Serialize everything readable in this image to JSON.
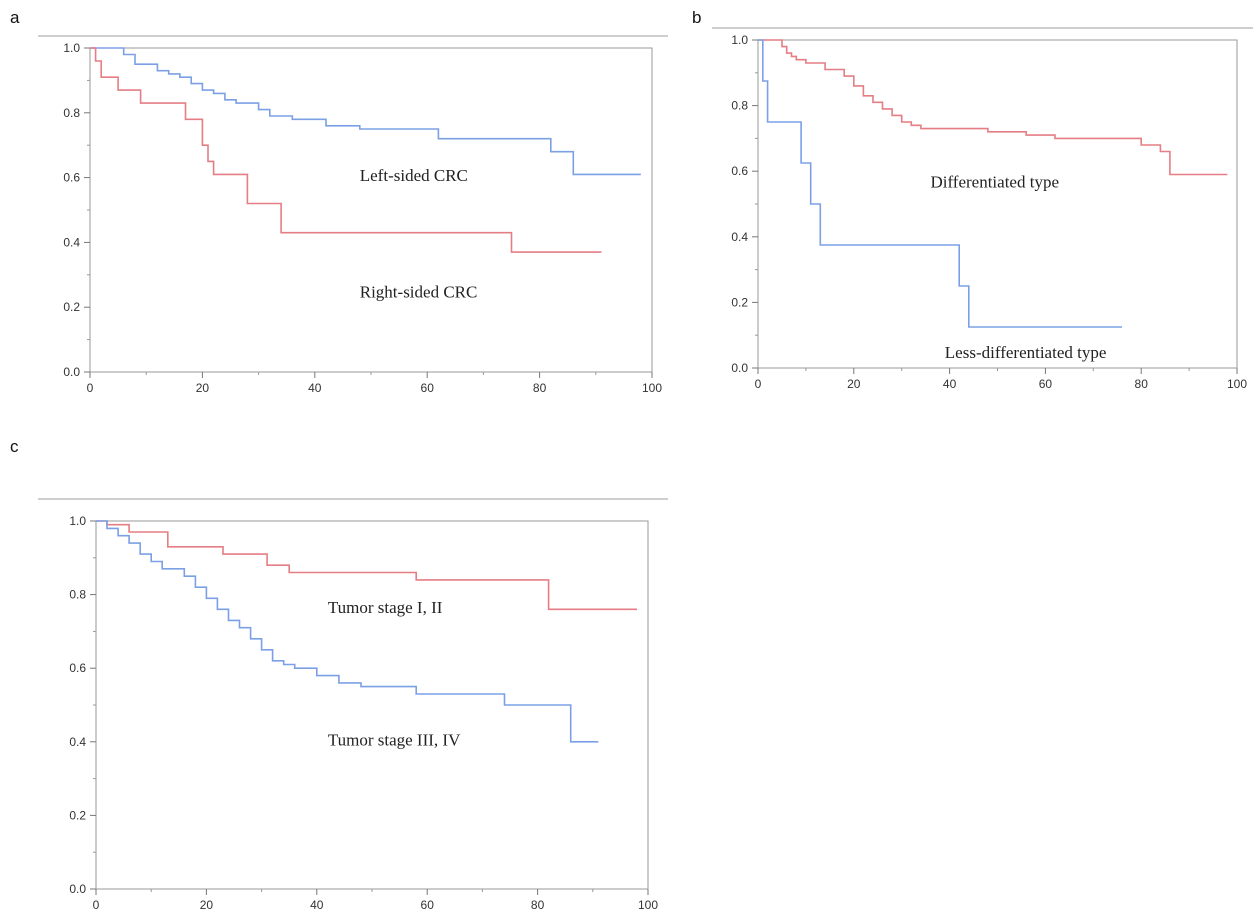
{
  "panels": [
    {
      "letter": "a",
      "chart_data": {
        "type": "line",
        "step": true,
        "xlim": [
          0,
          100
        ],
        "ylim": [
          0,
          1
        ],
        "xticks": [
          0,
          20,
          40,
          60,
          80,
          100
        ],
        "yticks": [
          0.0,
          0.2,
          0.4,
          0.6,
          0.8,
          1.0
        ],
        "xtick_labels": [
          "0",
          "20",
          "40",
          "60",
          "80",
          "100"
        ],
        "ytick_labels": [
          "0.0",
          "0.2",
          "0.4",
          "0.6",
          "0.8",
          "1.0"
        ],
        "grid": false,
        "annotations": [
          {
            "text": "Left-sided CRC",
            "x": 48,
            "y": 0.59
          },
          {
            "text": "Right-sided CRC",
            "x": 48,
            "y": 0.23
          }
        ],
        "series": [
          {
            "name": "Left-sided CRC",
            "color": "#7ba0e6",
            "x": [
              0,
              6,
              8,
              12,
              14,
              16,
              18,
              20,
              22,
              24,
              26,
              30,
              32,
              36,
              42,
              48,
              62,
              82,
              86,
              98
            ],
            "y": [
              1.0,
              0.98,
              0.95,
              0.93,
              0.92,
              0.91,
              0.89,
              0.87,
              0.86,
              0.84,
              0.83,
              0.81,
              0.79,
              0.78,
              0.76,
              0.75,
              0.72,
              0.68,
              0.61,
              0.61
            ]
          },
          {
            "name": "Right-sided CRC",
            "color": "#e57d84",
            "x": [
              0,
              1,
              2,
              5,
              9,
              17,
              20,
              21,
              22,
              28,
              34,
              75,
              91
            ],
            "y": [
              1.0,
              0.96,
              0.91,
              0.87,
              0.83,
              0.78,
              0.7,
              0.65,
              0.61,
              0.52,
              0.43,
              0.37,
              0.37
            ]
          }
        ]
      }
    },
    {
      "letter": "b",
      "chart_data": {
        "type": "line",
        "step": true,
        "xlim": [
          0,
          100
        ],
        "ylim": [
          0,
          1
        ],
        "xticks": [
          0,
          20,
          40,
          60,
          80,
          100
        ],
        "yticks": [
          0.0,
          0.2,
          0.4,
          0.6,
          0.8,
          1.0
        ],
        "xtick_labels": [
          "0",
          "20",
          "40",
          "60",
          "80",
          "100"
        ],
        "ytick_labels": [
          "0.0",
          "0.2",
          "0.4",
          "0.6",
          "0.8",
          "1.0"
        ],
        "grid": false,
        "annotations": [
          {
            "text": "Differentiated type",
            "x": 36,
            "y": 0.55
          },
          {
            "text": "Less-differentiated type",
            "x": 39,
            "y": 0.03
          }
        ],
        "series": [
          {
            "name": "Differentiated type",
            "color": "#e57d84",
            "x": [
              0,
              5,
              6,
              7,
              8,
              10,
              14,
              18,
              20,
              22,
              24,
              26,
              28,
              30,
              32,
              34,
              36,
              48,
              56,
              62,
              80,
              84,
              86,
              98
            ],
            "y": [
              1.0,
              0.98,
              0.96,
              0.95,
              0.94,
              0.93,
              0.91,
              0.89,
              0.86,
              0.83,
              0.81,
              0.79,
              0.77,
              0.75,
              0.74,
              0.73,
              0.73,
              0.72,
              0.71,
              0.7,
              0.68,
              0.66,
              0.59,
              0.59
            ]
          },
          {
            "name": "Less-differentiated type",
            "color": "#7ba0e6",
            "x": [
              0,
              1,
              2,
              9,
              11,
              13,
              42,
              44,
              76
            ],
            "y": [
              1.0,
              0.875,
              0.75,
              0.625,
              0.5,
              0.375,
              0.25,
              0.125,
              0.125
            ]
          }
        ]
      }
    },
    {
      "letter": "c",
      "chart_data": {
        "type": "line",
        "step": true,
        "xlim": [
          0,
          100
        ],
        "ylim": [
          0,
          1
        ],
        "xticks": [
          0,
          20,
          40,
          60,
          80,
          100
        ],
        "yticks": [
          0.0,
          0.2,
          0.4,
          0.6,
          0.8,
          1.0
        ],
        "xtick_labels": [
          "0",
          "20",
          "40",
          "60",
          "80",
          "100"
        ],
        "ytick_labels": [
          "0.0",
          "0.2",
          "0.4",
          "0.6",
          "0.8",
          "1.0"
        ],
        "grid": false,
        "annotations": [
          {
            "text": "Tumor stage I, II",
            "x": 42,
            "y": 0.75
          },
          {
            "text": "Tumor stage III, IV",
            "x": 42,
            "y": 0.39
          }
        ],
        "series": [
          {
            "name": "Tumor stage I, II",
            "color": "#e57d84",
            "x": [
              0,
              2,
              6,
              13,
              23,
              31,
              35,
              58,
              82,
              98
            ],
            "y": [
              1.0,
              0.99,
              0.97,
              0.93,
              0.91,
              0.88,
              0.86,
              0.84,
              0.76,
              0.76
            ]
          },
          {
            "name": "Tumor stage III, IV",
            "color": "#7ba0e6",
            "x": [
              0,
              2,
              4,
              6,
              8,
              10,
              12,
              16,
              18,
              20,
              22,
              24,
              26,
              28,
              30,
              32,
              34,
              36,
              40,
              44,
              48,
              58,
              74,
              86,
              91
            ],
            "y": [
              1.0,
              0.98,
              0.96,
              0.94,
              0.91,
              0.89,
              0.87,
              0.85,
              0.82,
              0.79,
              0.76,
              0.73,
              0.71,
              0.68,
              0.65,
              0.62,
              0.61,
              0.6,
              0.58,
              0.56,
              0.55,
              0.53,
              0.5,
              0.4,
              0.4
            ]
          }
        ]
      }
    }
  ]
}
